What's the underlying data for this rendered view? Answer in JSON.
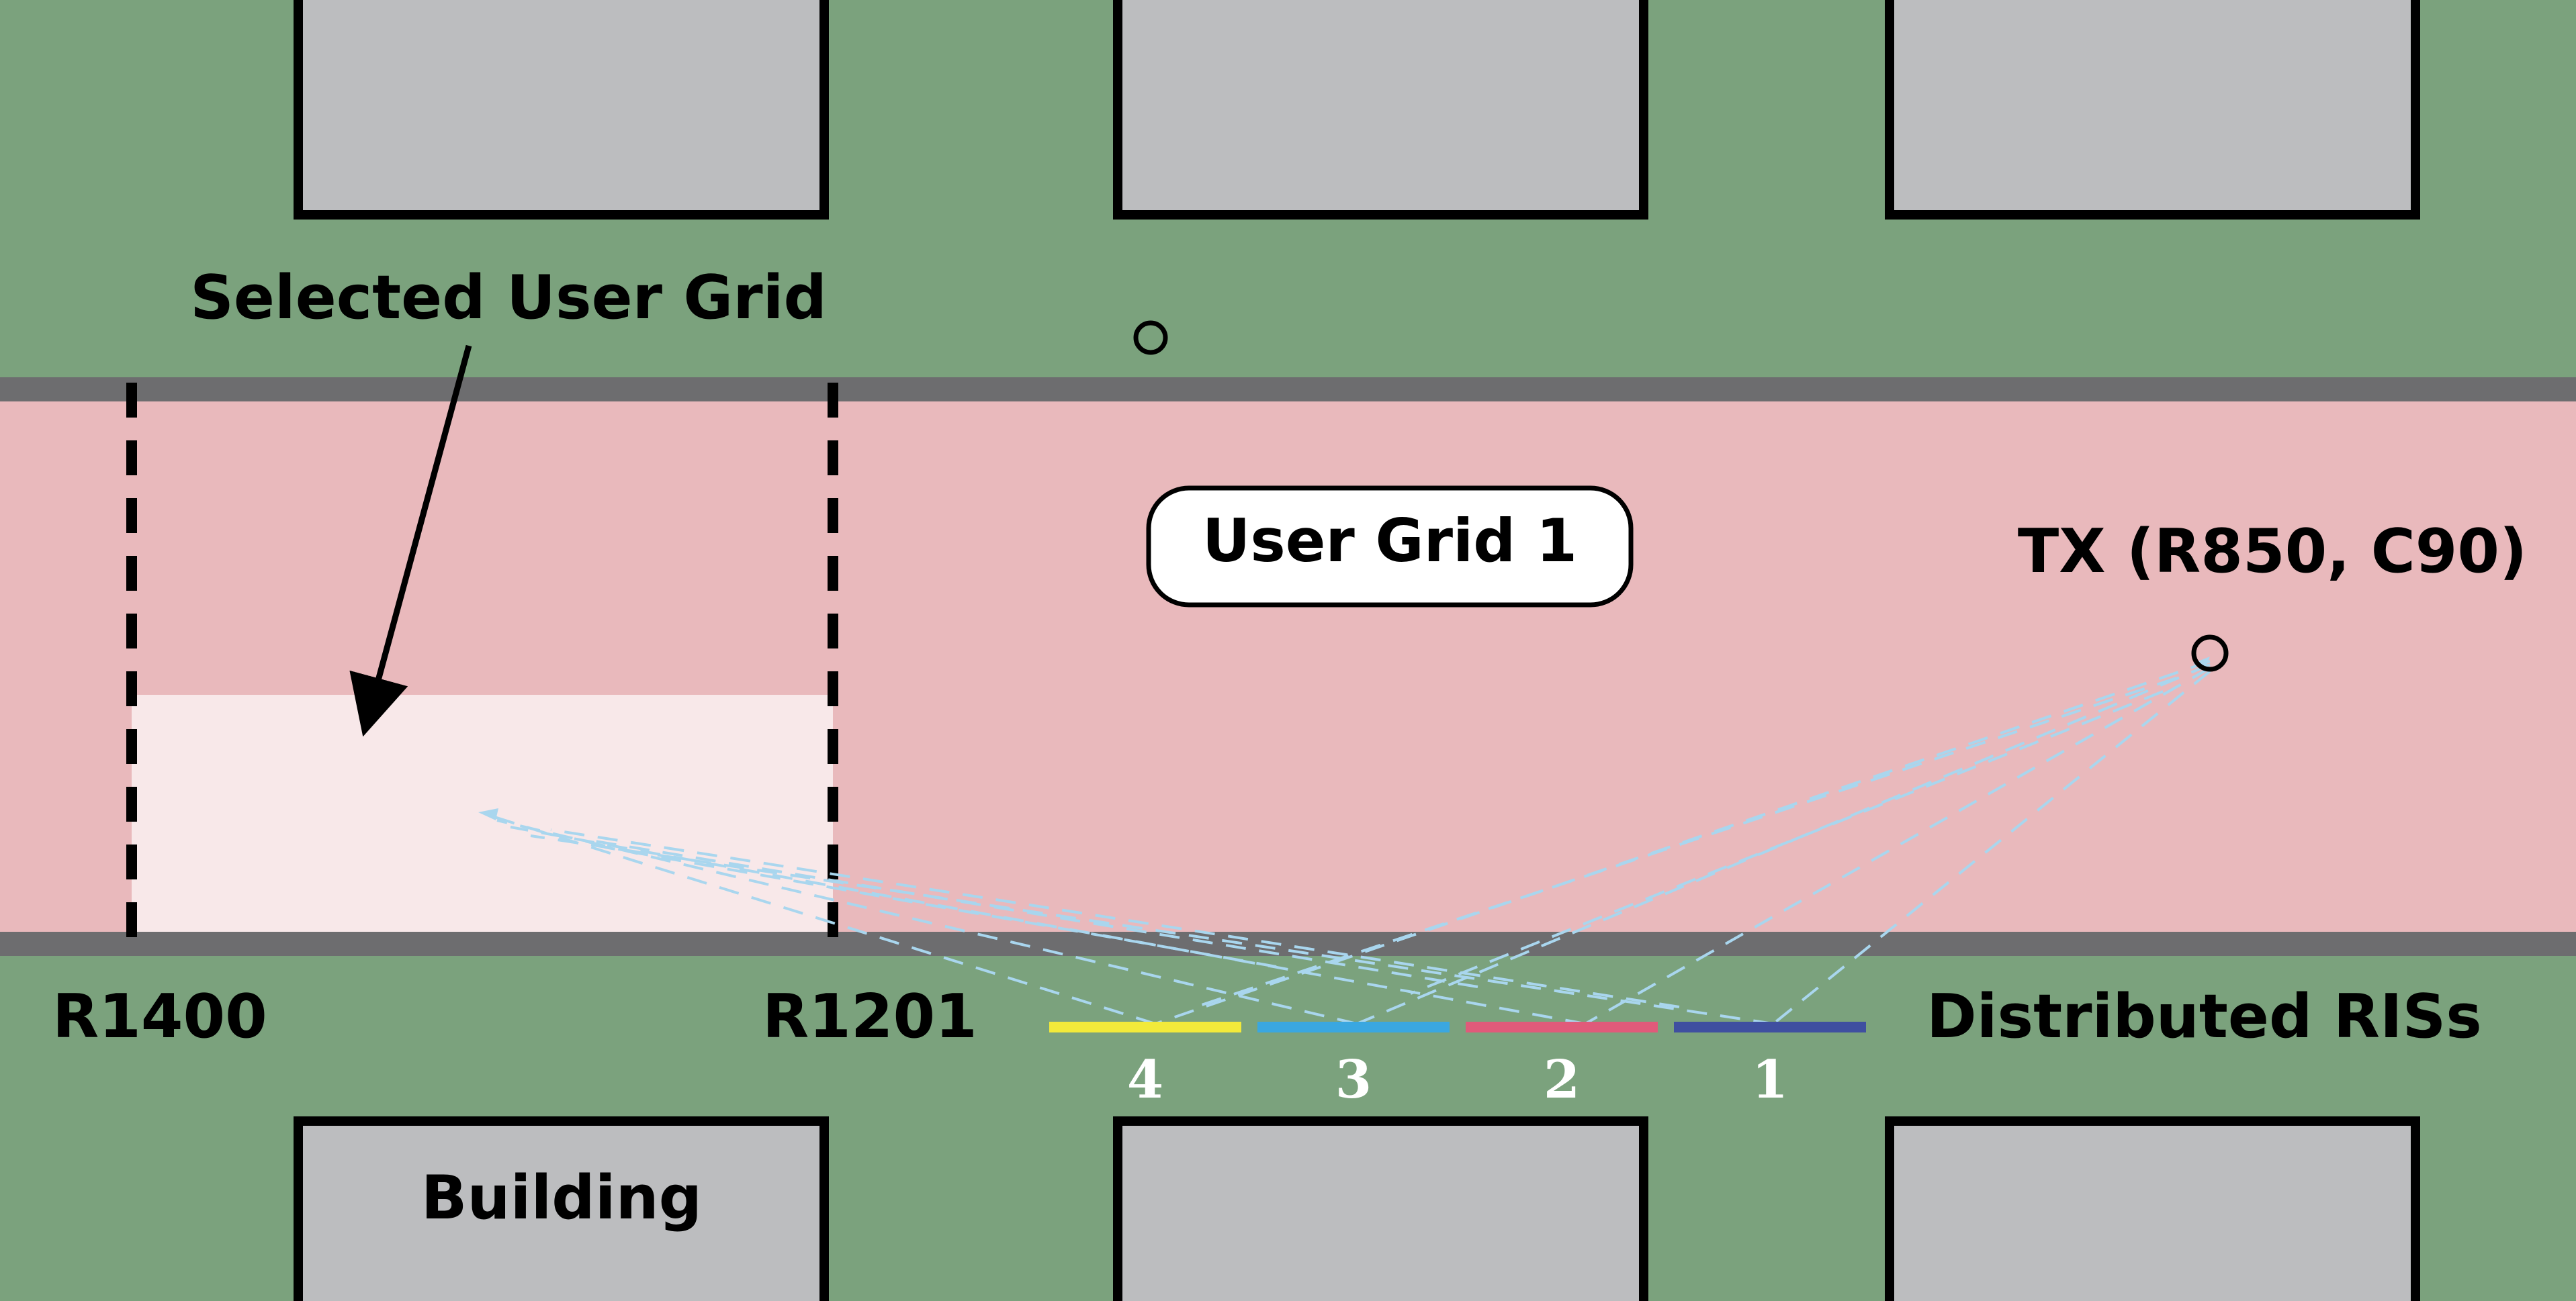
{
  "labels": {
    "selected_user_grid": "Selected User Grid",
    "user_grid": "User Grid 1",
    "tx": "TX (R850, C90)",
    "r_left": "R1400",
    "r_right": "R1201",
    "distributed_ris": "Distributed RISs",
    "building": "Building"
  },
  "ris": [
    {
      "index": "4",
      "color": "#f2ea3a"
    },
    {
      "index": "3",
      "color": "#3aa7e0"
    },
    {
      "index": "2",
      "color": "#e05a7a"
    },
    {
      "index": "1",
      "color": "#3f4fa0"
    }
  ],
  "colors": {
    "ground": "#7ba27d",
    "road": "#e9b9bc",
    "road_edge": "#6d6d6f",
    "building": "#bcbdbf",
    "selected_region": "#f8e8e9",
    "ray": "#a9d6ee"
  }
}
